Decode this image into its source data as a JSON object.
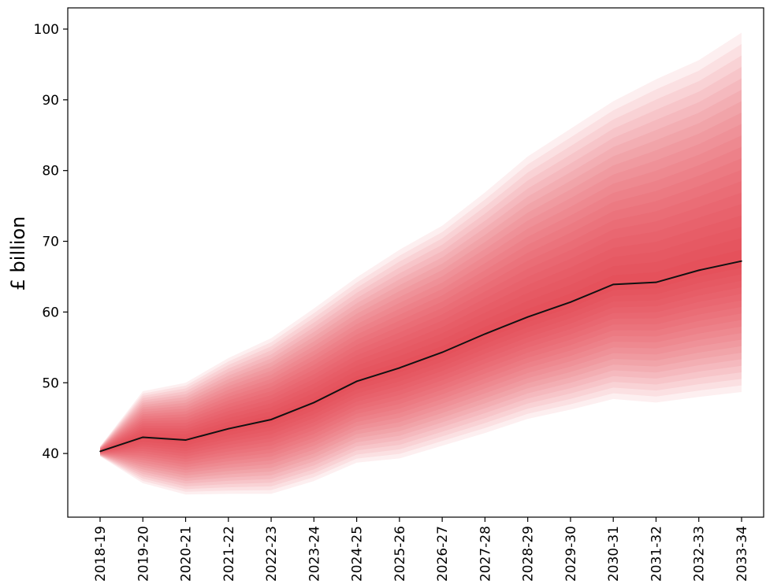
{
  "chart_data": {
    "type": "area",
    "xlabel": "",
    "ylabel": "£ billion",
    "categories": [
      "2018-19",
      "2019-20",
      "2020-21",
      "2021-22",
      "2022-23",
      "2023-24",
      "2024-25",
      "2025-26",
      "2026-27",
      "2027-28",
      "2028-29",
      "2029-30",
      "2030-31",
      "2031-32",
      "2032-33",
      "2033-34"
    ],
    "ylim": [
      31,
      103
    ],
    "yticks": [
      40,
      50,
      60,
      70,
      80,
      90,
      100
    ],
    "grid": false,
    "median": [
      40.3,
      42.3,
      41.9,
      43.5,
      44.8,
      47.2,
      50.2,
      52.1,
      54.3,
      56.9,
      59.3,
      61.4,
      63.9,
      64.2,
      65.9,
      67.2
    ],
    "upper_bound": [
      41.0,
      48.8,
      50.0,
      53.5,
      56.3,
      60.5,
      64.9,
      68.8,
      72.2,
      76.9,
      82.0,
      85.9,
      89.8,
      92.9,
      95.6,
      99.5
    ],
    "lower_bound": [
      39.6,
      35.8,
      34.2,
      34.3,
      34.3,
      36.1,
      38.7,
      39.3,
      41.1,
      42.9,
      44.9,
      46.2,
      47.7,
      47.2,
      48.0,
      48.7
    ],
    "bands": 20,
    "colors": {
      "band": "#e8223a",
      "median": "#111111",
      "axis": "#000000"
    }
  }
}
